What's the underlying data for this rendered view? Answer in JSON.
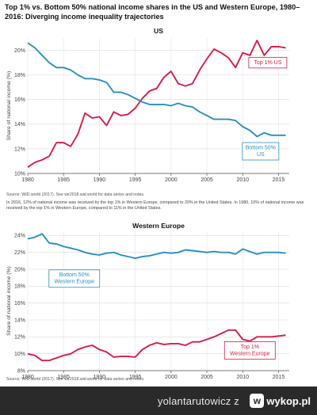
{
  "figure": {
    "title": "Top 1% vs. Bottom 50% national income shares in the US and Western Europe, 1980–2016: Diverging income inequality trajectories"
  },
  "chart_data": [
    {
      "type": "line",
      "title": "US",
      "xlabel": "",
      "ylabel": "Share of national income (%)",
      "xlim": [
        1980,
        2016.5
      ],
      "ylim": [
        10,
        21
      ],
      "x_ticks": [
        "1980",
        "1985",
        "1990",
        "1995",
        "2000",
        "2005",
        "2010",
        "2015"
      ],
      "y_ticks": [
        "10%",
        "12%",
        "14%",
        "16%",
        "18%",
        "20%"
      ],
      "grid": true,
      "x": [
        1980,
        1981,
        1982,
        1983,
        1984,
        1985,
        1986,
        1987,
        1988,
        1989,
        1990,
        1991,
        1992,
        1993,
        1994,
        1995,
        1996,
        1997,
        1998,
        1999,
        2000,
        2001,
        2002,
        2003,
        2004,
        2005,
        2006,
        2007,
        2008,
        2009,
        2010,
        2011,
        2012,
        2013,
        2014,
        2015,
        2016
      ],
      "series": [
        {
          "name": "Top 1% US",
          "color": "#d81b4a",
          "values": [
            10.5,
            10.9,
            11.1,
            11.4,
            12.5,
            12.5,
            12.2,
            13.2,
            14.9,
            14.5,
            14.6,
            13.9,
            15.0,
            14.7,
            14.8,
            15.3,
            16.1,
            16.7,
            16.9,
            17.8,
            18.3,
            17.3,
            17.1,
            17.3,
            18.4,
            19.3,
            20.1,
            19.8,
            19.4,
            18.6,
            19.8,
            19.6,
            20.8,
            19.6,
            20.3,
            20.3,
            20.2
          ]
        },
        {
          "name": "Bottom 50% US",
          "color": "#2a8fc3",
          "values": [
            20.6,
            20.2,
            19.6,
            19.0,
            18.6,
            18.6,
            18.4,
            18.0,
            17.7,
            17.7,
            17.6,
            17.4,
            16.6,
            16.6,
            16.4,
            16.1,
            15.8,
            15.6,
            15.6,
            15.6,
            15.5,
            15.7,
            15.5,
            15.4,
            15.0,
            14.7,
            14.4,
            14.4,
            14.4,
            14.3,
            13.8,
            13.5,
            13.0,
            13.3,
            13.1,
            13.1,
            13.1
          ]
        }
      ],
      "labels": {
        "top": "Top 1% US",
        "bottom_line1": "Bottom 50%",
        "bottom_line2": "US"
      }
    },
    {
      "type": "line",
      "title": "Western Europe",
      "xlabel": "",
      "ylabel": "Share of national income (%)",
      "xlim": [
        1980,
        2016.5
      ],
      "ylim": [
        8,
        24.5
      ],
      "x_ticks": [
        "1980",
        "1985",
        "1990",
        "1995",
        "2000",
        "2005",
        "2010",
        "2015"
      ],
      "y_ticks": [
        "8%",
        "10%",
        "12%",
        "14%",
        "16%",
        "18%",
        "20%",
        "22%",
        "24%"
      ],
      "grid": true,
      "x": [
        1980,
        1981,
        1982,
        1983,
        1984,
        1985,
        1986,
        1987,
        1988,
        1989,
        1990,
        1991,
        1992,
        1993,
        1994,
        1995,
        1996,
        1997,
        1998,
        1999,
        2000,
        2001,
        2002,
        2003,
        2004,
        2005,
        2006,
        2007,
        2008,
        2009,
        2010,
        2011,
        2012,
        2013,
        2014,
        2015,
        2016
      ],
      "series": [
        {
          "name": "Top 1% Western Europe",
          "color": "#d81b4a",
          "values": [
            10.0,
            9.8,
            9.2,
            9.2,
            9.5,
            9.8,
            10.0,
            10.5,
            10.8,
            11.0,
            10.5,
            10.2,
            9.6,
            9.7,
            9.7,
            9.6,
            10.5,
            11.0,
            11.3,
            11.1,
            11.2,
            11.2,
            11.0,
            11.4,
            11.4,
            11.7,
            12.0,
            12.4,
            12.8,
            12.8,
            11.7,
            11.5,
            12.0,
            12.0,
            12.0,
            12.1,
            12.2
          ]
        },
        {
          "name": "Bottom 50% Western Europe",
          "color": "#2a8fc3",
          "values": [
            23.6,
            23.8,
            24.2,
            23.1,
            23.0,
            22.7,
            22.5,
            22.3,
            22.0,
            21.8,
            21.7,
            21.9,
            22.0,
            21.7,
            21.5,
            21.3,
            21.5,
            21.6,
            21.8,
            22.0,
            21.9,
            22.0,
            22.3,
            22.2,
            22.1,
            22.0,
            22.1,
            22.0,
            22.0,
            21.8,
            22.4,
            22.1,
            21.8,
            22.0,
            22.0,
            22.0,
            21.9
          ]
        }
      ],
      "labels": {
        "top_line1": "Top 1%",
        "top_line2": "Western Europe",
        "bottom_line1": "Bottom 50%",
        "bottom_line2": "Western Europe"
      }
    }
  ],
  "notes": {
    "us_source": "Source: WID.world (2017). See wir2018.wid.world for data series and notes.",
    "us_text": "In 2016, 12% of national income was received by the top 1% in Western Europe, compared to 20% in the United States. In 1980, 10% of national income was received by the top 1% in Western Europe, compared to 11% in the United States.",
    "we_source": "Source: WID.world (2017). See wir2018.wid.world for data series and notes."
  },
  "footer": {
    "user": "yolantarutowicz",
    "separator": "z",
    "site": "wykop.pl",
    "logo_glyph": "w"
  }
}
